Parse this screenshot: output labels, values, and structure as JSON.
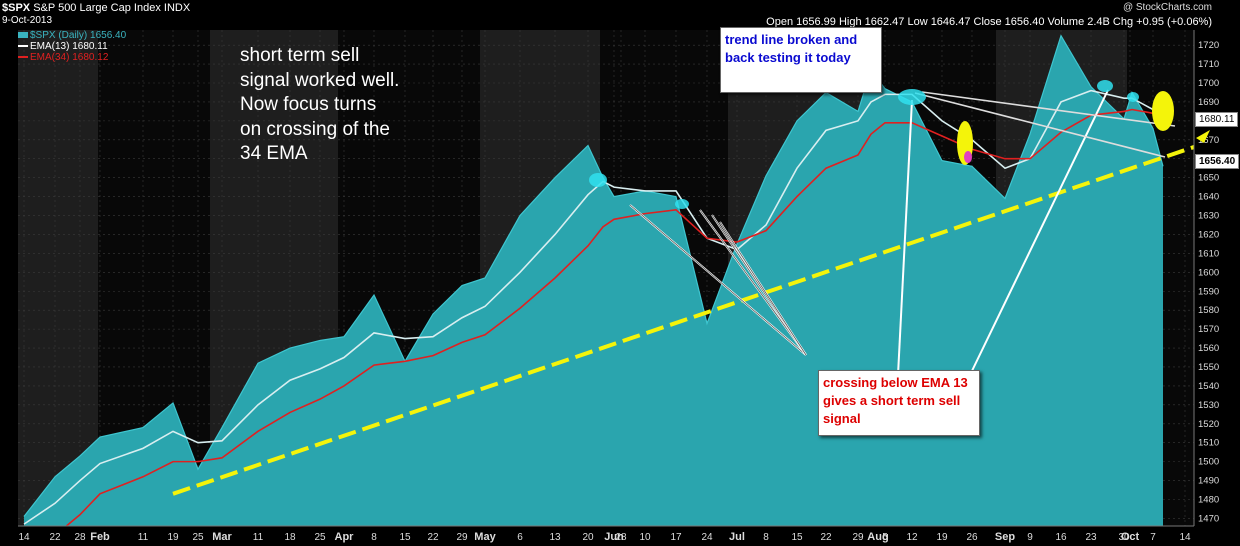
{
  "header": {
    "symbol": "$SPX",
    "name": "S&P 500 Large Cap Index",
    "exchange": "INDX",
    "date": "9-Oct-2013",
    "ohlc": "Open 1656.99  High 1662.47  Low 1646.47  Close 1656.40  Volume 2.4B  Chg +0.95 (+0.06%)",
    "watermark": "@ StockCharts.com"
  },
  "legend": [
    {
      "label": "$SPX (Daily) 1656.40",
      "color": "#3ab4c0"
    },
    {
      "label": "EMA(13) 1680.11",
      "color": "#ffffff"
    },
    {
      "label": "EMA(34) 1680.12",
      "color": "#e02020"
    }
  ],
  "annotations": {
    "main_note": "short term sell signal worked well. Now focus turns on crossing of the 34 EMA",
    "trend_note": "trend line broken and back testing it today",
    "sell_note": "crossing below EMA 13 gives a short term sell signal"
  },
  "price_labels": {
    "ema13": "1680.11",
    "close": "1656.40"
  },
  "colors": {
    "area_fill": "#2aa5ae",
    "area_line": "#3ec6d0",
    "ema13": "#d8eef0",
    "ema34": "#e02020",
    "trendline": "#f4f40a",
    "month_band": "#1e1e1e",
    "month_band_alt": "#080808"
  },
  "chart_data": {
    "type": "area",
    "title": "$SPX S&P 500 Large Cap Index",
    "ylim": [
      1466,
      1728
    ],
    "yticks": [
      1470,
      1480,
      1490,
      1500,
      1510,
      1520,
      1530,
      1540,
      1550,
      1560,
      1570,
      1580,
      1590,
      1600,
      1610,
      1620,
      1630,
      1640,
      1650,
      1660,
      1670,
      1680,
      1690,
      1700,
      1710,
      1720
    ],
    "xtick_labels": [
      "14",
      "22",
      "28",
      "Feb",
      "11",
      "19",
      "25",
      "Mar",
      "11",
      "18",
      "25",
      "Apr",
      "8",
      "15",
      "22",
      "29",
      "May",
      "6",
      "13",
      "20",
      "28",
      "Jun",
      "10",
      "17",
      "24",
      "Jul",
      "8",
      "15",
      "22",
      "29",
      "Aug",
      "5",
      "12",
      "19",
      "26",
      "Sep",
      "9",
      "16",
      "23",
      "30",
      "Oct",
      "7",
      "14"
    ],
    "x": [
      "Jan 14",
      "Jan 22",
      "Jan 28",
      "Feb 1",
      "Feb 11",
      "Feb 19",
      "Feb 25",
      "Mar 1",
      "Mar 11",
      "Mar 18",
      "Mar 25",
      "Apr 1",
      "Apr 8",
      "Apr 15",
      "Apr 22",
      "Apr 29",
      "May 1",
      "May 6",
      "May 13",
      "May 20",
      "May 28",
      "Jun 1",
      "Jun 10",
      "Jun 17",
      "Jun 24",
      "Jul 1",
      "Jul 8",
      "Jul 15",
      "Jul 22",
      "Jul 29",
      "Aug 1",
      "Aug 5",
      "Aug 12",
      "Aug 19",
      "Aug 26",
      "Sep 1",
      "Sep 9",
      "Sep 16",
      "Sep 23",
      "Sep 30",
      "Oct 1",
      "Oct 7",
      "Oct 9"
    ],
    "series": [
      {
        "name": "$SPX (Daily)",
        "values": [
          1471,
          1492,
          1503,
          1513,
          1518,
          1531,
          1496,
          1518,
          1552,
          1560,
          1564,
          1566,
          1588,
          1553,
          1578,
          1593,
          1597,
          1630,
          1650,
          1667,
          1650,
          1640,
          1643,
          1640,
          1573,
          1615,
          1651,
          1680,
          1695,
          1685,
          1707,
          1697,
          1690,
          1659,
          1656,
          1639,
          1673,
          1725,
          1698,
          1681,
          1695,
          1676,
          1656
        ]
      },
      {
        "name": "EMA(13)",
        "values": [
          1467,
          1478,
          1490,
          1499,
          1507,
          1516,
          1510,
          1511,
          1530,
          1543,
          1549,
          1555,
          1568,
          1565,
          1566,
          1576,
          1582,
          1600,
          1620,
          1641,
          1648,
          1645,
          1643,
          1643,
          1618,
          1612,
          1625,
          1655,
          1675,
          1680,
          1690,
          1694,
          1694,
          1680,
          1670,
          1655,
          1660,
          1690,
          1696,
          1692,
          1692,
          1686,
          1680
        ]
      },
      {
        "name": "EMA(34)",
        "values": [
          1450,
          1461,
          1472,
          1483,
          1492,
          1500,
          1500,
          1502,
          1516,
          1526,
          1533,
          1540,
          1551,
          1553,
          1556,
          1563,
          1567,
          1581,
          1597,
          1614,
          1624,
          1628,
          1631,
          1633,
          1618,
          1616,
          1622,
          1640,
          1655,
          1662,
          1673,
          1679,
          1679,
          1672,
          1665,
          1660,
          1660,
          1674,
          1683,
          1685,
          1686,
          1684,
          1680
        ]
      }
    ],
    "trendline": {
      "x": [
        "Feb 19",
        "Oct 14"
      ],
      "values": [
        1483,
        1668
      ]
    },
    "legend_position": "top-left",
    "grid": true
  }
}
